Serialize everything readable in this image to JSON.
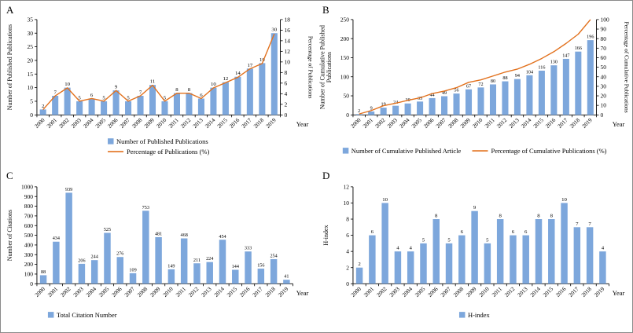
{
  "figure": {
    "bar_color": "#7DA7DC",
    "line_color": "#E2711D",
    "axis_color": "#000000",
    "background": "#ffffff"
  },
  "chart_data": [
    {
      "id": "A",
      "panel_label": "A",
      "type": "bar",
      "categories": [
        "2000",
        "2001",
        "2002",
        "2003",
        "2004",
        "2005",
        "2006",
        "2007",
        "2008",
        "2009",
        "2010",
        "2011",
        "2012",
        "2013",
        "2014",
        "2015",
        "2016",
        "2017",
        "2018",
        "2019"
      ],
      "bar_series": {
        "name": "Number of Published Publications",
        "values": [
          2,
          7,
          10,
          5,
          6,
          5,
          9,
          5,
          7,
          11,
          5,
          8,
          8,
          6,
          10,
          12,
          14,
          17,
          19,
          30
        ]
      },
      "line_series": {
        "name": "Percentage of Publications (%)",
        "values": [
          1.0,
          3.6,
          5.1,
          2.6,
          3.1,
          2.6,
          4.6,
          2.6,
          3.6,
          5.6,
          2.6,
          4.1,
          4.1,
          3.1,
          5.1,
          6.1,
          7.1,
          8.7,
          9.7,
          15.3
        ]
      },
      "ylabel_left": [
        "Number of Published Publications"
      ],
      "ylabel_right": [
        "Percentage of  Publications"
      ],
      "xlabel": "Year",
      "ylim_left": [
        0,
        35,
        5
      ],
      "ylim_right": [
        0,
        18,
        2
      ],
      "data_labels": true,
      "legend": [
        {
          "marker": "bar",
          "label": "Number of  Published Publications"
        },
        {
          "marker": "line",
          "label": "Percentage of  Publications (%)"
        }
      ]
    },
    {
      "id": "B",
      "panel_label": "B",
      "type": "bar",
      "categories": [
        "2000",
        "2001",
        "2002",
        "2003",
        "2004",
        "2005",
        "2006",
        "2007",
        "2008",
        "2009",
        "2010",
        "2011",
        "2012",
        "2013",
        "2014",
        "2015",
        "2016",
        "2017",
        "2018",
        "2019"
      ],
      "bar_series": {
        "name": "Number of Cumulative Published Article",
        "values": [
          2,
          9,
          19,
          24,
          30,
          35,
          44,
          49,
          56,
          67,
          72,
          80,
          88,
          94,
          104,
          116,
          130,
          147,
          166,
          196
        ]
      },
      "line_series": {
        "name": "Percentage of Cumulative Publications (%)",
        "values": [
          1.0,
          4.6,
          9.7,
          12.2,
          15.3,
          17.9,
          22.4,
          25.0,
          28.6,
          34.2,
          36.7,
          40.8,
          44.9,
          48.0,
          53.1,
          59.2,
          66.3,
          75.0,
          84.7,
          100.0
        ]
      },
      "ylabel_left": [
        "Number of  Cumulative Published",
        "Publications"
      ],
      "ylabel_right": [
        "Percentage of  Cumulative Publications"
      ],
      "xlabel": "Year",
      "ylim_left": [
        0,
        250,
        50
      ],
      "ylim_right": [
        0,
        100,
        10
      ],
      "data_labels": true,
      "legend": [
        {
          "marker": "bar",
          "label": "Number of Cumulative Published Article"
        },
        {
          "marker": "line",
          "label": "Percentage of  Cumulative Publications (%)"
        }
      ]
    },
    {
      "id": "C",
      "panel_label": "C",
      "type": "bar",
      "categories": [
        "2000",
        "2001",
        "2002",
        "2003",
        "2004",
        "2005",
        "2006",
        "2007",
        "2008",
        "2009",
        "2010",
        "2011",
        "2012",
        "2013",
        "2014",
        "2015",
        "2016",
        "2017",
        "2018",
        "2019"
      ],
      "bar_series": {
        "name": "Total Citation Number",
        "values": [
          88,
          434,
          939,
          206,
          244,
          525,
          276,
          109,
          753,
          481,
          149,
          468,
          211,
          224,
          454,
          144,
          333,
          156,
          254,
          41
        ]
      },
      "ylabel_left": [
        "Number of Citations"
      ],
      "xlabel": "Year",
      "ylim_left": [
        0,
        1000,
        100
      ],
      "data_labels": true,
      "legend": [
        {
          "marker": "bar",
          "label": "Total Citation Number"
        }
      ]
    },
    {
      "id": "D",
      "panel_label": "D",
      "type": "bar",
      "categories": [
        "2000",
        "2001",
        "2002",
        "2003",
        "2004",
        "2005",
        "2006",
        "2007",
        "2008",
        "2009",
        "2010",
        "2011",
        "2012",
        "2013",
        "2014",
        "2015",
        "2016",
        "2017",
        "2018",
        "2019"
      ],
      "bar_series": {
        "name": "H-index",
        "values": [
          2,
          6,
          10,
          4,
          4,
          5,
          8,
          5,
          6,
          9,
          5,
          8,
          6,
          6,
          8,
          8,
          10,
          7,
          7,
          4
        ]
      },
      "ylabel_left": [
        "H-index"
      ],
      "xlabel": "Year",
      "ylim_left": [
        0,
        12,
        2
      ],
      "data_labels": true,
      "legend": [
        {
          "marker": "bar",
          "label": "H-index"
        }
      ]
    }
  ]
}
